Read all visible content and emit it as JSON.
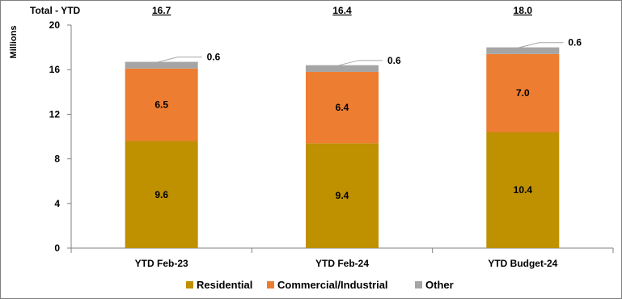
{
  "chart_data": {
    "type": "bar",
    "stacked": true,
    "categories": [
      "YTD Feb-23",
      "YTD Feb-24",
      "YTD Budget-24"
    ],
    "series": [
      {
        "name": "Residential",
        "values": [
          9.6,
          9.4,
          10.4
        ],
        "color": "#bf9000",
        "labels": [
          "9.6",
          "9.4",
          "10.4"
        ]
      },
      {
        "name": "Commercial/Industrial",
        "values": [
          6.5,
          6.4,
          7.0
        ],
        "color": "#ed7d31",
        "labels": [
          "6.5",
          "6.4",
          "7.0"
        ]
      },
      {
        "name": "Other",
        "values": [
          0.6,
          0.6,
          0.6
        ],
        "color": "#a5a5a5",
        "labels": [
          "0.6",
          "0.6",
          "0.6"
        ]
      }
    ],
    "totals_label": "Total - YTD",
    "totals": [
      "16.7",
      "16.4",
      "18.0"
    ],
    "ylabel": "Millions",
    "ylim": [
      0,
      20
    ],
    "yticks": [
      0,
      4,
      8,
      12,
      16,
      20
    ],
    "grid": false,
    "legend_position": "bottom"
  }
}
